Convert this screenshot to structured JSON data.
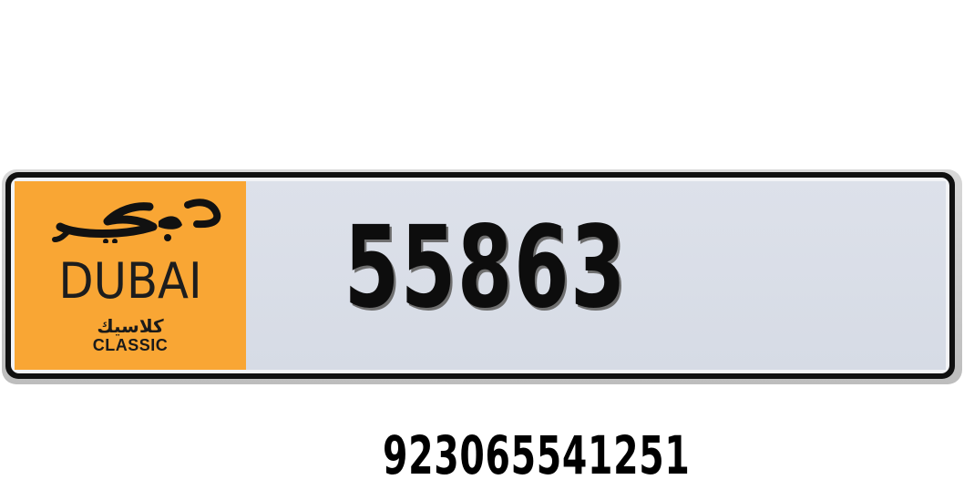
{
  "plate": {
    "emirate_arabic": "دبي",
    "emirate_label": "DUBAI",
    "category_arabic": "كلاسيك",
    "category_label": "CLASSIC",
    "number": "55863",
    "colors": {
      "emirate_panel": "#f9a634",
      "number_panel": "#d8dde7",
      "border": "#101010",
      "text": "#0d0d0d"
    }
  },
  "contact": {
    "phone": "923065541251"
  },
  "icons": {
    "logo": "dubai-arabic-calligraphy-logo"
  }
}
